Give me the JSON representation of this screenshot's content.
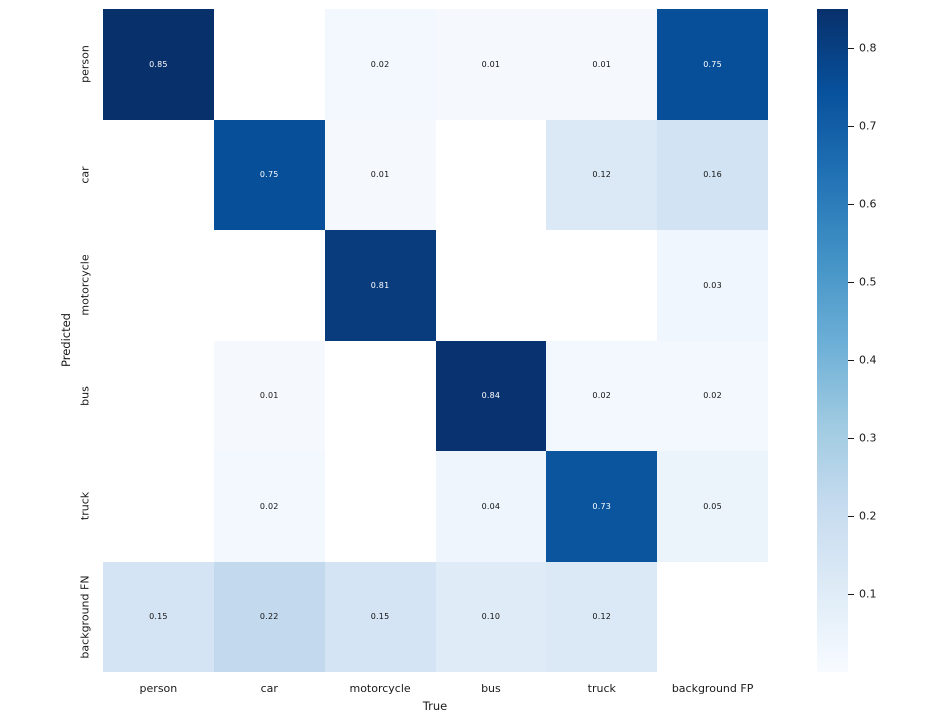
{
  "chart_data": {
    "type": "heatmap",
    "title": "",
    "xlabel": "True",
    "ylabel": "Predicted",
    "x_categories": [
      "person",
      "car",
      "motorcycle",
      "bus",
      "truck",
      "background FP"
    ],
    "y_categories": [
      "person",
      "car",
      "motorcycle",
      "bus",
      "truck",
      "background FN"
    ],
    "matrix": [
      [
        0.85,
        null,
        0.02,
        0.01,
        0.01,
        0.75
      ],
      [
        null,
        0.75,
        0.01,
        null,
        0.12,
        0.16
      ],
      [
        null,
        null,
        0.81,
        null,
        null,
        0.03
      ],
      [
        null,
        0.01,
        null,
        0.84,
        0.02,
        0.02
      ],
      [
        null,
        0.02,
        null,
        0.04,
        0.73,
        0.05
      ],
      [
        0.15,
        0.22,
        0.15,
        0.1,
        0.12,
        null
      ]
    ],
    "annotation_decimals": 2,
    "colormap": "Blues",
    "colormap_stops": [
      "#f7fbff",
      "#deebf7",
      "#c6dbef",
      "#9ecae1",
      "#6baed6",
      "#4292c6",
      "#2171b5",
      "#08519c",
      "#08306b"
    ],
    "empty_cell_color": "#ffffff",
    "annotation_color_dark": "#111111",
    "annotation_color_light": "#ffffff",
    "vmin": 0,
    "vmax": 0.85,
    "colorbar_ticks": [
      0.1,
      0.2,
      0.3,
      0.4,
      0.5,
      0.6,
      0.7,
      0.8
    ],
    "colorbar_tick_decimals": 1,
    "legend_position": "right-colorbar",
    "grid": false
  }
}
